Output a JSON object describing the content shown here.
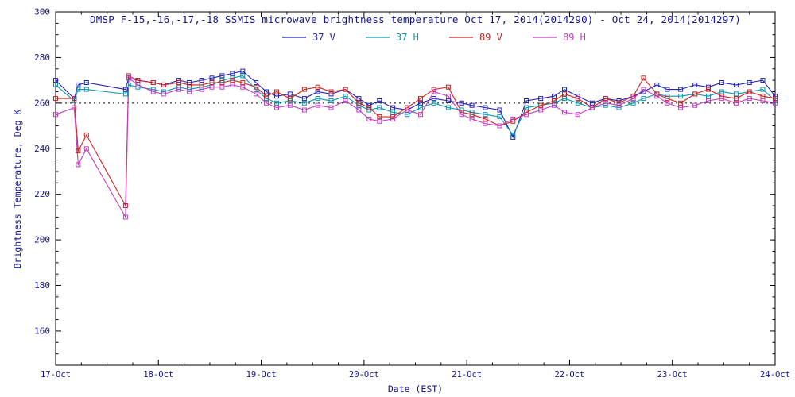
{
  "chart_data": {
    "type": "line",
    "title": "DMSP F-15,-16,-17,-18 SSMIS microwave brightness temperature Oct 17, 2014(2014290) - Oct 24, 2014(2014297)",
    "xlabel": "Date (EST)",
    "ylabel": "Brightness Temperature, Deg K",
    "x_tick_labels": [
      "17-Oct",
      "18-Oct",
      "19-Oct",
      "20-Oct",
      "21-Oct",
      "22-Oct",
      "23-Oct",
      "24-Oct"
    ],
    "y_ticks": [
      160,
      180,
      200,
      220,
      240,
      260,
      280,
      300
    ],
    "ylim": [
      145,
      300
    ],
    "xlim_days": [
      0,
      7
    ],
    "reference_line_y": 260,
    "grid": false,
    "legend_position": "top-center",
    "marker": "open-square",
    "text_color": "#15158f",
    "frame_color": "#000000",
    "background": "#ffffff",
    "x": [
      0.0,
      0.18,
      0.22,
      0.3,
      0.68,
      0.71,
      0.8,
      0.95,
      1.05,
      1.2,
      1.3,
      1.42,
      1.52,
      1.62,
      1.72,
      1.82,
      1.95,
      2.05,
      2.15,
      2.28,
      2.42,
      2.55,
      2.68,
      2.82,
      2.95,
      3.05,
      3.15,
      3.28,
      3.42,
      3.55,
      3.68,
      3.82,
      3.95,
      4.05,
      4.18,
      4.32,
      4.45,
      4.58,
      4.72,
      4.85,
      4.95,
      5.08,
      5.22,
      5.35,
      5.48,
      5.62,
      5.72,
      5.85,
      5.95,
      6.08,
      6.22,
      6.35,
      6.48,
      6.62,
      6.75,
      6.88,
      7.0
    ],
    "series": [
      {
        "name": "37 V",
        "color": "#2323b4",
        "values": [
          270,
          262,
          268,
          269,
          266,
          271,
          270,
          269,
          268,
          270,
          269,
          270,
          271,
          272,
          273,
          274,
          269,
          265,
          263,
          264,
          262,
          265,
          264,
          266,
          262,
          259,
          261,
          258,
          257,
          260,
          262,
          261,
          260,
          259,
          258,
          257,
          245,
          261,
          262,
          263,
          266,
          263,
          260,
          262,
          261,
          263,
          265,
          268,
          266,
          266,
          268,
          267,
          269,
          268,
          269,
          270,
          263
        ]
      },
      {
        "name": "37 H",
        "color": "#0d93ad",
        "values": [
          268,
          261,
          266,
          266,
          264,
          268,
          267,
          266,
          265,
          267,
          266,
          267,
          268,
          270,
          271,
          272,
          266,
          262,
          260,
          261,
          260,
          262,
          261,
          263,
          259,
          257,
          258,
          256,
          255,
          258,
          260,
          258,
          257,
          256,
          255,
          254,
          246,
          258,
          259,
          260,
          262,
          260,
          258,
          259,
          258,
          260,
          262,
          264,
          263,
          263,
          264,
          263,
          265,
          264,
          265,
          266,
          261
        ]
      },
      {
        "name": "89 V",
        "color": "#cc2222",
        "values": [
          262,
          262,
          239,
          246,
          215,
          272,
          270,
          269,
          268,
          269,
          268,
          268,
          269,
          269,
          270,
          269,
          267,
          263,
          265,
          262,
          266,
          267,
          265,
          266,
          260,
          258,
          254,
          254,
          258,
          262,
          266,
          267,
          256,
          255,
          253,
          250,
          252,
          256,
          259,
          261,
          264,
          262,
          258,
          262,
          260,
          263,
          271,
          264,
          262,
          260,
          264,
          266,
          263,
          262,
          265,
          263,
          262
        ]
      },
      {
        "name": "89 H",
        "color": "#bf3fbf",
        "values": [
          255,
          258,
          233,
          240,
          210,
          271,
          268,
          265,
          264,
          266,
          265,
          266,
          267,
          267,
          268,
          267,
          264,
          260,
          258,
          259,
          257,
          259,
          258,
          261,
          257,
          253,
          252,
          253,
          257,
          255,
          265,
          263,
          255,
          253,
          251,
          250,
          253,
          255,
          257,
          259,
          256,
          255,
          258,
          260,
          259,
          262,
          266,
          263,
          260,
          258,
          259,
          261,
          262,
          260,
          262,
          261,
          260
        ]
      }
    ]
  }
}
